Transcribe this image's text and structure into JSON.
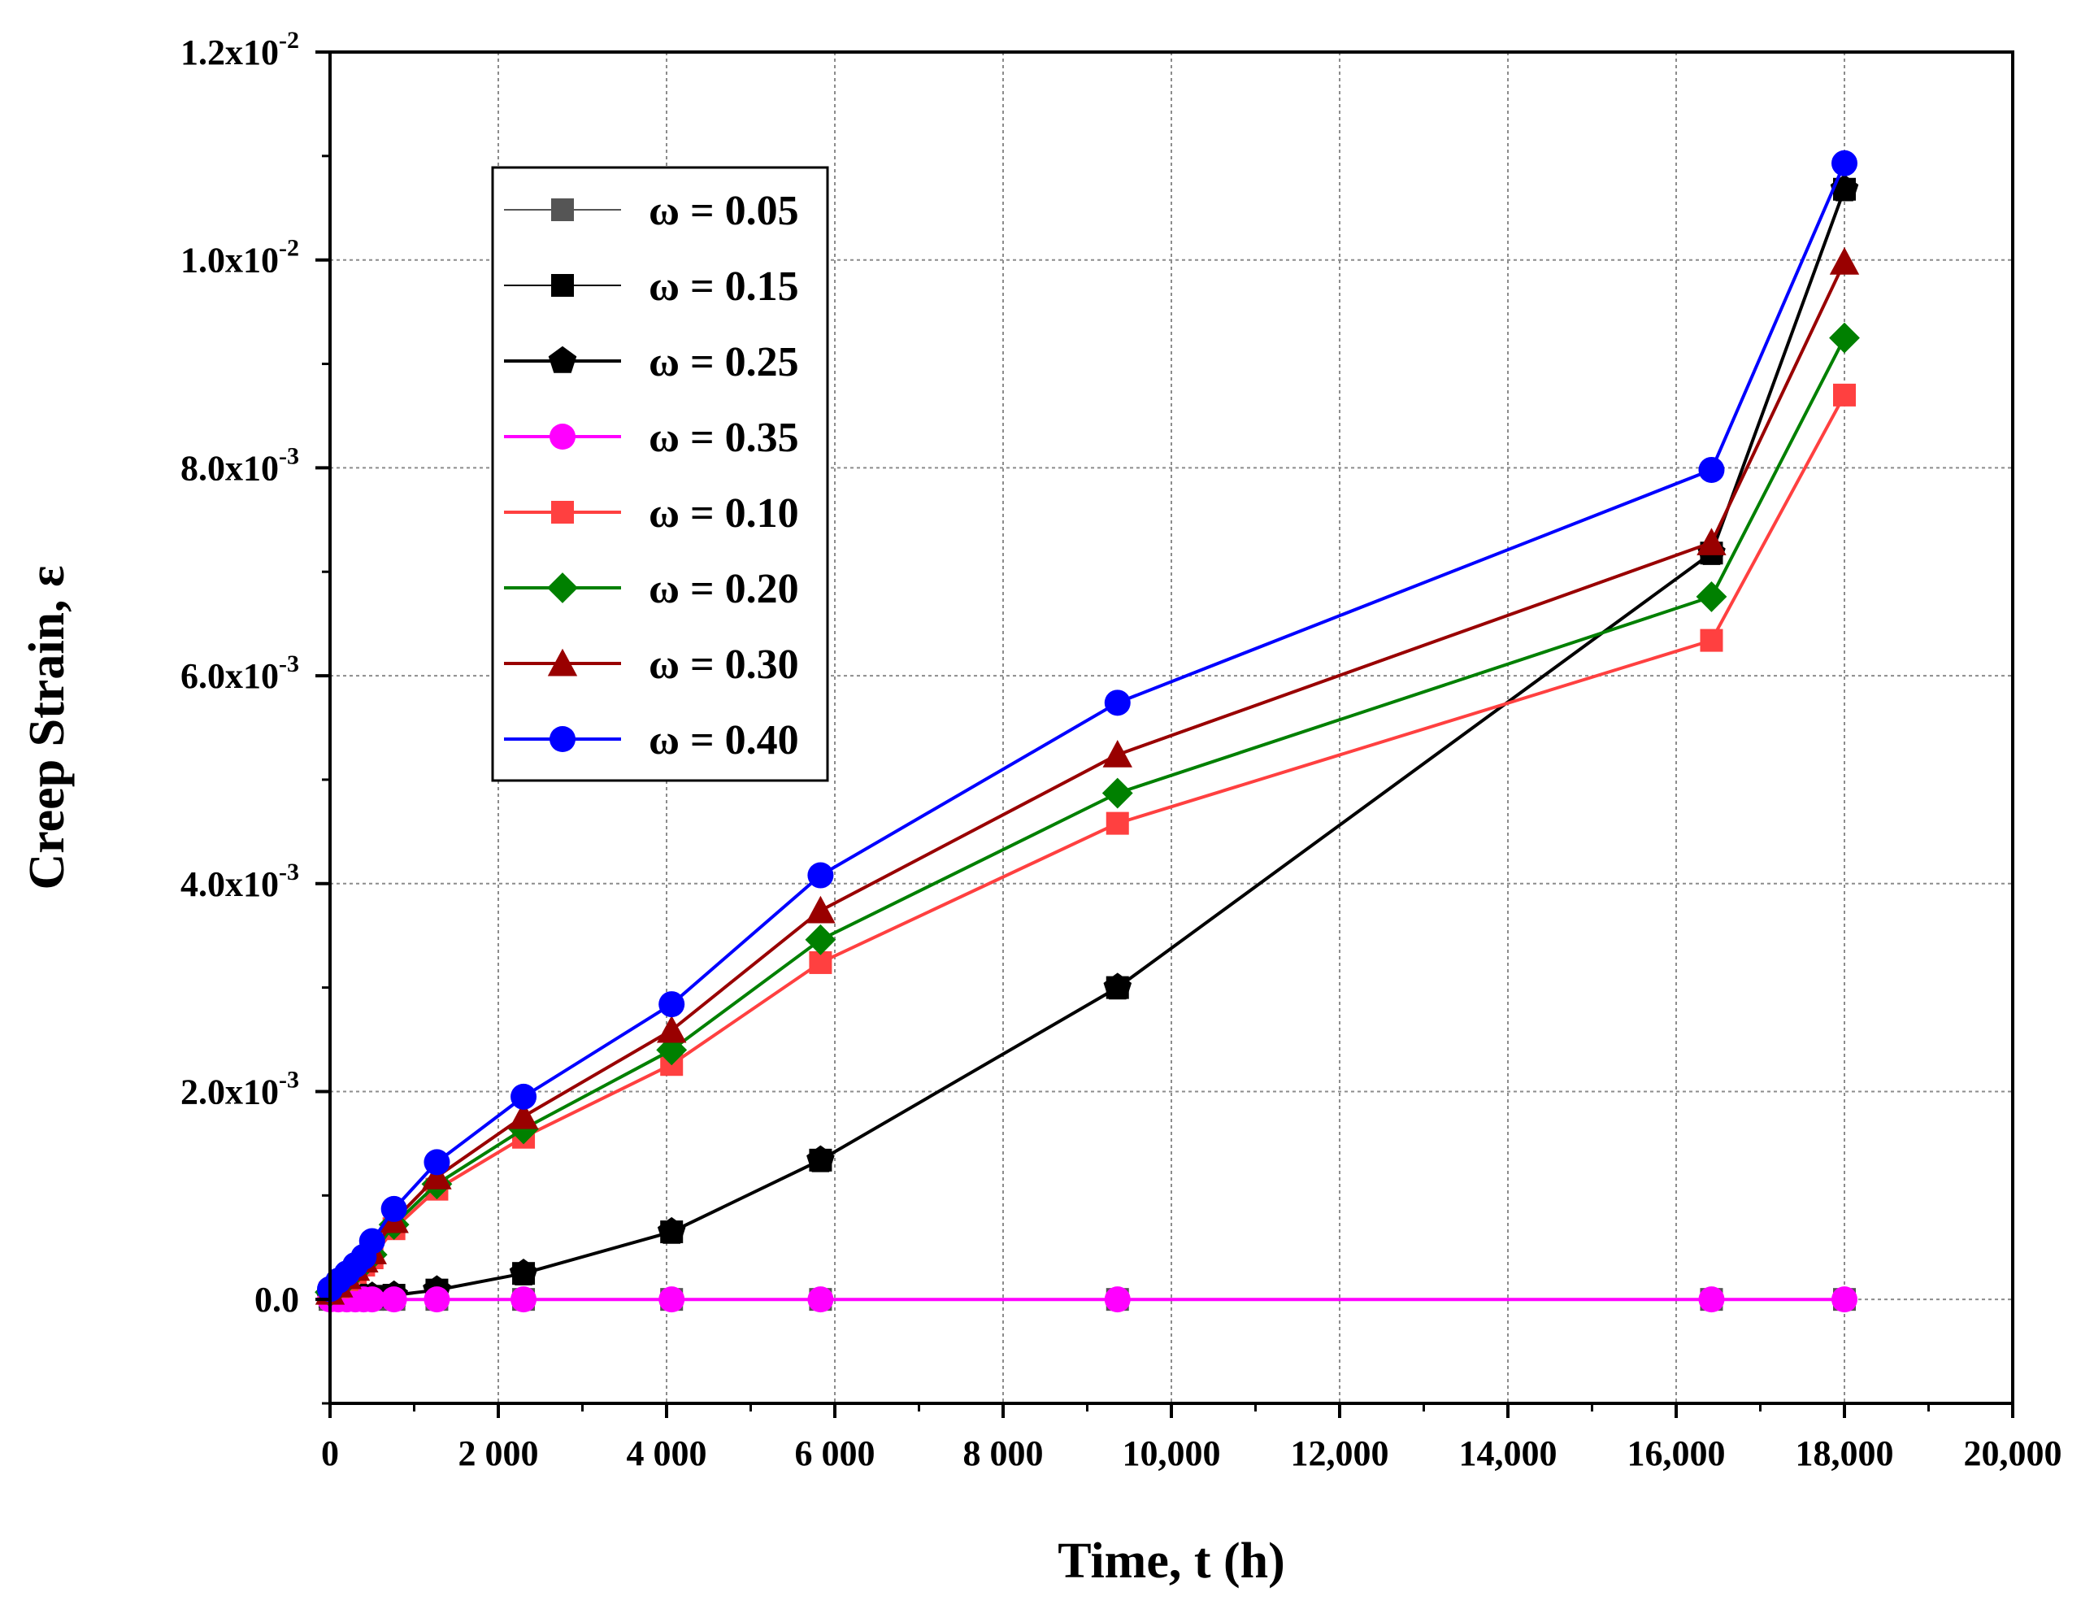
{
  "chart_data": {
    "type": "line",
    "title": "",
    "xlabel": "Time, t (h)",
    "ylabel": "Creep Strain, ε",
    "xlim": [
      0,
      20000
    ],
    "ylim": [
      -0.001,
      0.012
    ],
    "grid": true,
    "legend_position": "top-left",
    "x_ticks": [
      {
        "value": 0,
        "label": "0"
      },
      {
        "value": 2000,
        "label": "2 000"
      },
      {
        "value": 4000,
        "label": "4 000"
      },
      {
        "value": 6000,
        "label": "6 000"
      },
      {
        "value": 8000,
        "label": "8 000"
      },
      {
        "value": 10000,
        "label": "10,000"
      },
      {
        "value": 12000,
        "label": "12,000"
      },
      {
        "value": 14000,
        "label": "14,000"
      },
      {
        "value": 16000,
        "label": "16,000"
      },
      {
        "value": 18000,
        "label": "18,000"
      },
      {
        "value": 20000,
        "label": "20,000"
      }
    ],
    "y_ticks": [
      {
        "value": 0,
        "mantissa": "0.0",
        "exponent": ""
      },
      {
        "value": 0.002,
        "mantissa": "2.0x10",
        "exponent": "-3"
      },
      {
        "value": 0.004,
        "mantissa": "4.0x10",
        "exponent": "-3"
      },
      {
        "value": 0.006,
        "mantissa": "6.0x10",
        "exponent": "-3"
      },
      {
        "value": 0.008,
        "mantissa": "8.0x10",
        "exponent": "-3"
      },
      {
        "value": 0.01,
        "mantissa": "1.0x10",
        "exponent": "-2"
      },
      {
        "value": 0.012,
        "mantissa": "1.2x10",
        "exponent": "-2"
      }
    ],
    "series": [
      {
        "name": "ω = 0.05",
        "color": "#555555",
        "marker": "square",
        "line_width": 2,
        "x": [
          0,
          100,
          200,
          300,
          400,
          500,
          760,
          1270,
          2300,
          4060,
          5830,
          9360,
          16420,
          18000
        ],
        "y": [
          0,
          0,
          0,
          0,
          0,
          0,
          0,
          0,
          0,
          0,
          0,
          0,
          0,
          0
        ]
      },
      {
        "name": "ω = 0.15",
        "color": "#000000",
        "marker": "square",
        "line_width": 2,
        "x": [
          0,
          100,
          200,
          300,
          400,
          500,
          760,
          1270,
          2300,
          4060,
          5830,
          9360,
          16420,
          18000
        ],
        "y": [
          3e-05,
          3e-05,
          3e-05,
          3e-05,
          3e-05,
          3e-05,
          4e-05,
          9e-05,
          0.00025,
          0.00065,
          0.00134,
          0.003,
          0.00718,
          0.01068
        ]
      },
      {
        "name": "ω = 0.25",
        "color": "#000000",
        "marker": "pentagon",
        "line_width": 4,
        "x": [
          0,
          100,
          200,
          300,
          400,
          500,
          760,
          1270,
          2300,
          4060,
          5830,
          9360,
          16420,
          18000
        ],
        "y": [
          3e-05,
          3e-05,
          3e-05,
          3e-05,
          3e-05,
          3e-05,
          4e-05,
          9e-05,
          0.00025,
          0.00065,
          0.00134,
          0.003,
          0.00718,
          0.01068
        ]
      },
      {
        "name": "ω = 0.35",
        "color": "#ff00ff",
        "marker": "circle",
        "line_width": 4,
        "x": [
          0,
          100,
          200,
          300,
          400,
          500,
          760,
          1270,
          2300,
          4060,
          5830,
          9360,
          16420,
          18000
        ],
        "y": [
          0,
          0,
          0,
          0,
          0,
          0,
          0,
          0,
          0,
          0,
          0,
          0,
          0,
          0
        ]
      },
      {
        "name": "ω = 0.10",
        "color": "#ff4040",
        "marker": "square",
        "line_width": 4,
        "x": [
          0,
          100,
          200,
          300,
          400,
          500,
          760,
          1270,
          2300,
          4060,
          5830,
          9360,
          16420,
          18000
        ],
        "y": [
          6e-05,
          0.00012,
          0.00019,
          0.00026,
          0.00033,
          0.0004,
          0.00068,
          0.00106,
          0.00156,
          0.00226,
          0.00324,
          0.00458,
          0.00634,
          0.0087
        ]
      },
      {
        "name": "ω = 0.20",
        "color": "#008000",
        "marker": "diamond",
        "line_width": 4,
        "x": [
          0,
          100,
          200,
          300,
          400,
          500,
          760,
          1270,
          2300,
          4060,
          5830,
          9360,
          16420,
          18000
        ],
        "y": [
          7e-05,
          0.00013,
          0.0002,
          0.00028,
          0.00035,
          0.00043,
          0.00072,
          0.00111,
          0.00164,
          0.0024,
          0.00346,
          0.00487,
          0.00676,
          0.00925
        ]
      },
      {
        "name": "ω = 0.30",
        "color": "#990000",
        "marker": "triangle",
        "line_width": 4,
        "x": [
          0,
          100,
          200,
          300,
          400,
          500,
          760,
          1270,
          2300,
          4060,
          5830,
          9360,
          16420,
          18000
        ],
        "y": [
          7e-05,
          0.00014,
          0.00022,
          0.0003,
          0.00038,
          0.00046,
          0.00076,
          0.00118,
          0.00176,
          0.00259,
          0.00374,
          0.00524,
          0.00728,
          0.00998
        ]
      },
      {
        "name": "ω = 0.40",
        "color": "#0000ff",
        "marker": "circle",
        "line_width": 4,
        "x": [
          0,
          100,
          200,
          300,
          400,
          500,
          760,
          1270,
          2300,
          4060,
          5830,
          9360,
          16420,
          18000
        ],
        "y": [
          0.0001,
          0.00018,
          0.00025,
          0.00033,
          0.00041,
          0.00056,
          0.00087,
          0.00132,
          0.00195,
          0.00284,
          0.00408,
          0.00574,
          0.00798,
          0.01093
        ]
      }
    ]
  }
}
